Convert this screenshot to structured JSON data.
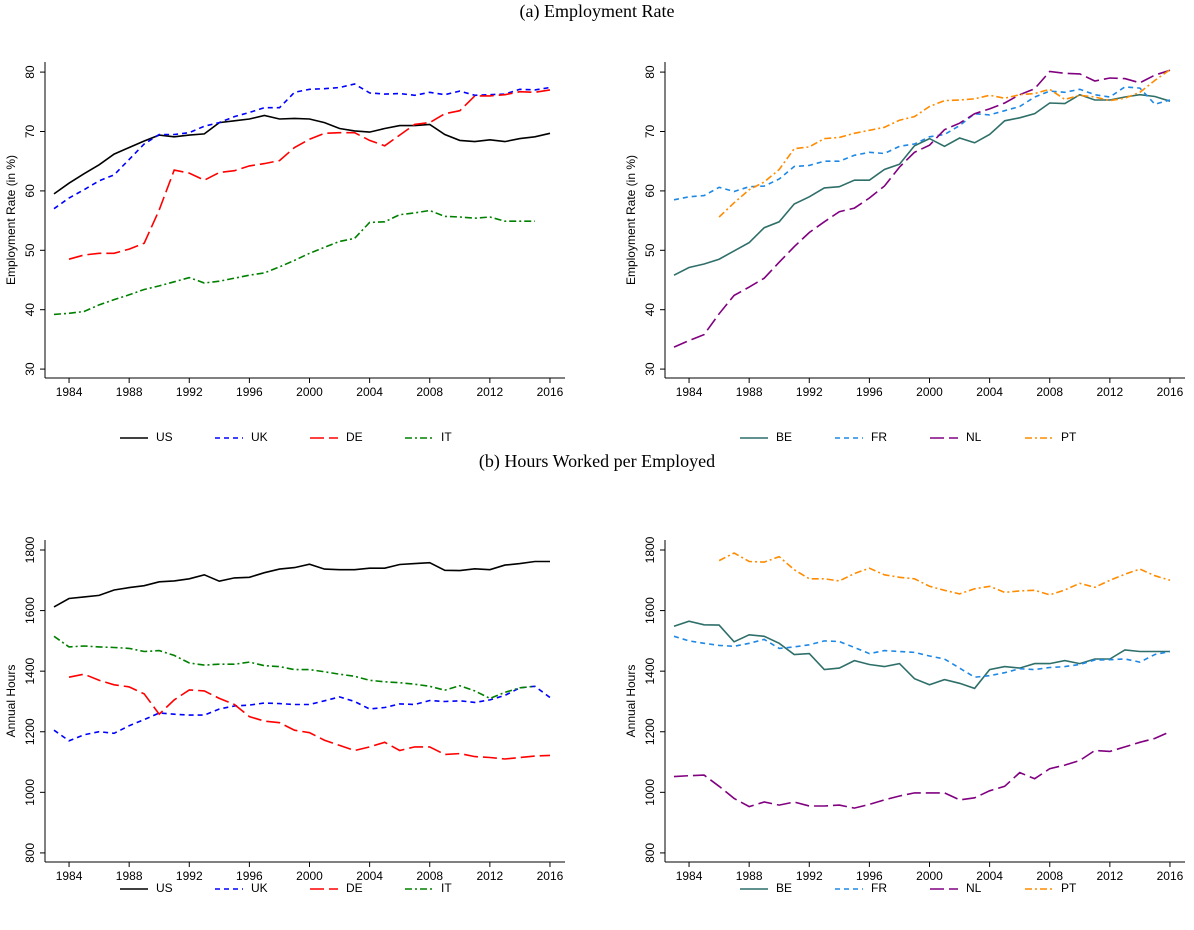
{
  "headings": [
    "(a) Employment Rate",
    "(b) Hours Worked per Employed"
  ],
  "chart_data": [
    {
      "type": "line",
      "ylabel": "Employment Rate (in %)",
      "x": [
        1983,
        1984,
        1985,
        1986,
        1987,
        1988,
        1989,
        1990,
        1991,
        1992,
        1993,
        1994,
        1995,
        1996,
        1997,
        1998,
        1999,
        2000,
        2001,
        2002,
        2003,
        2004,
        2005,
        2006,
        2007,
        2008,
        2009,
        2010,
        2011,
        2012,
        2013,
        2014,
        2015,
        2016
      ],
      "xlim": [
        1982.4,
        2017
      ],
      "xticks": [
        1984,
        1988,
        1992,
        1996,
        2000,
        2004,
        2008,
        2012,
        2016
      ],
      "ylim": [
        28.5,
        81.7
      ],
      "yticks": [
        30,
        40,
        50,
        60,
        70,
        80
      ],
      "grid": false,
      "legend": "bottom",
      "series": [
        {
          "name": "US",
          "color": "#000000",
          "values": [
            59.5,
            61.3,
            62.9,
            64.4,
            66.2,
            67.3,
            68.4,
            69.4,
            69.1,
            69.4,
            69.6,
            71.5,
            71.8,
            72.1,
            72.7,
            72.1,
            72.2,
            72.1,
            71.5,
            70.5,
            70.1,
            69.9,
            70.5,
            71.0,
            71.0,
            71.2,
            69.5,
            68.5,
            68.3,
            68.6,
            68.3,
            68.8,
            69.1,
            69.7
          ]
        },
        {
          "name": "UK",
          "color": "#0000ff",
          "values": [
            57.0,
            58.8,
            60.2,
            61.7,
            62.7,
            65.3,
            67.9,
            69.5,
            69.5,
            69.8,
            70.9,
            71.5,
            72.5,
            73.2,
            74.0,
            74.0,
            76.6,
            77.1,
            77.2,
            77.4,
            78.0,
            76.5,
            76.3,
            76.4,
            76.1,
            76.6,
            76.2,
            76.8,
            76.1,
            76.2,
            76.3,
            77.1,
            77.0,
            77.4
          ]
        },
        {
          "name": "DE",
          "color": "#ff0000",
          "values": [
            null,
            48.5,
            49.2,
            49.5,
            49.5,
            50.2,
            51.2,
            56.8,
            63.5,
            63.0,
            61.8,
            63.1,
            63.4,
            64.2,
            64.6,
            65.1,
            67.3,
            68.7,
            69.7,
            69.8,
            69.8,
            68.5,
            67.6,
            69.4,
            71.2,
            71.5,
            73.0,
            73.5,
            76.0,
            76.0,
            76.2,
            76.7,
            76.6,
            77.0
          ]
        },
        {
          "name": "IT",
          "color": "#008000",
          "values": [
            39.2,
            39.4,
            39.7,
            40.8,
            41.7,
            42.5,
            43.4,
            44.0,
            44.7,
            45.4,
            44.5,
            44.8,
            45.3,
            45.8,
            46.2,
            47.2,
            48.3,
            49.5,
            50.5,
            51.5,
            52.0,
            54.7,
            54.8,
            56.0,
            56.3,
            56.7,
            55.7,
            55.6,
            55.4,
            55.6,
            54.9,
            54.9,
            54.9,
            null
          ]
        }
      ]
    },
    {
      "type": "line",
      "ylabel": "Employment Rate (in %)",
      "x": [
        1983,
        1984,
        1985,
        1986,
        1987,
        1988,
        1989,
        1990,
        1991,
        1992,
        1993,
        1994,
        1995,
        1996,
        1997,
        1998,
        1999,
        2000,
        2001,
        2002,
        2003,
        2004,
        2005,
        2006,
        2007,
        2008,
        2009,
        2010,
        2011,
        2012,
        2013,
        2014,
        2015,
        2016
      ],
      "xlim": [
        1982.4,
        2017
      ],
      "xticks": [
        1984,
        1988,
        1992,
        1996,
        2000,
        2004,
        2008,
        2012,
        2016
      ],
      "ylim": [
        28.5,
        81.7
      ],
      "yticks": [
        30,
        40,
        50,
        60,
        70,
        80
      ],
      "grid": false,
      "legend": "bottom",
      "series": [
        {
          "name": "BE",
          "color": "#2f6f6a",
          "values": [
            45.8,
            47.1,
            47.7,
            48.5,
            49.9,
            51.3,
            53.8,
            54.8,
            57.8,
            59.0,
            60.5,
            60.7,
            61.8,
            61.8,
            63.6,
            64.5,
            67.6,
            68.8,
            67.5,
            68.9,
            68.1,
            69.5,
            71.8,
            72.3,
            73.0,
            74.8,
            74.7,
            76.2,
            75.3,
            75.3,
            75.8,
            76.2,
            75.9,
            75.1
          ]
        },
        {
          "name": "FR",
          "color": "#1e88e5",
          "values": [
            58.5,
            59.0,
            59.2,
            60.6,
            59.9,
            60.7,
            60.8,
            62.0,
            64.1,
            64.3,
            65.0,
            65.0,
            66.0,
            66.5,
            66.3,
            67.5,
            67.9,
            69.1,
            69.5,
            71.0,
            73.0,
            72.8,
            73.5,
            74.2,
            75.8,
            76.8,
            76.6,
            77.1,
            76.2,
            75.8,
            77.5,
            77.3,
            74.6,
            75.3
          ]
        },
        {
          "name": "NL",
          "color": "#800080",
          "values": [
            33.7,
            34.8,
            35.8,
            39.3,
            42.4,
            43.8,
            45.3,
            48.0,
            50.6,
            53.0,
            54.8,
            56.5,
            57.1,
            58.8,
            60.8,
            64.0,
            66.5,
            67.7,
            70.3,
            71.4,
            73.0,
            73.8,
            74.8,
            76.2,
            77.2,
            80.1,
            79.8,
            79.7,
            78.5,
            79.0,
            78.9,
            78.2,
            79.5,
            80.3
          ]
        },
        {
          "name": "PT",
          "color": "#ff8c00",
          "values": [
            null,
            null,
            null,
            55.6,
            58.0,
            60.2,
            61.5,
            63.6,
            67.1,
            67.4,
            68.8,
            69.0,
            69.7,
            70.2,
            70.7,
            71.9,
            72.5,
            74.2,
            75.2,
            75.3,
            75.5,
            76.1,
            75.6,
            76.2,
            76.4,
            77.1,
            75.4,
            76.1,
            75.8,
            75.2,
            75.6,
            76.6,
            78.6,
            80.4
          ]
        }
      ]
    },
    {
      "type": "line",
      "ylabel": "Annual Hours",
      "x": [
        1983,
        1984,
        1985,
        1986,
        1987,
        1988,
        1989,
        1990,
        1991,
        1992,
        1993,
        1994,
        1995,
        1996,
        1997,
        1998,
        1999,
        2000,
        2001,
        2002,
        2003,
        2004,
        2005,
        2006,
        2007,
        2008,
        2009,
        2010,
        2011,
        2012,
        2013,
        2014,
        2015,
        2016
      ],
      "xlim": [
        1982.4,
        2017
      ],
      "xticks": [
        1984,
        1988,
        1992,
        1996,
        2000,
        2004,
        2008,
        2012,
        2016
      ],
      "ylim": [
        770,
        1833
      ],
      "yticks": [
        800,
        1000,
        1200,
        1400,
        1600,
        1800
      ],
      "grid": false,
      "legend": "bottom",
      "series": [
        {
          "name": "US",
          "color": "#000000",
          "values": [
            1612,
            1640,
            1645,
            1650,
            1668,
            1676,
            1682,
            1695,
            1698,
            1705,
            1718,
            1697,
            1708,
            1710,
            1725,
            1737,
            1742,
            1753,
            1737,
            1735,
            1735,
            1740,
            1740,
            1752,
            1755,
            1758,
            1733,
            1732,
            1738,
            1735,
            1750,
            1755,
            1762,
            1762
          ]
        },
        {
          "name": "UK",
          "color": "#0000ff",
          "values": [
            1205,
            1170,
            1190,
            1200,
            1195,
            1220,
            1240,
            1262,
            1258,
            1255,
            1255,
            1275,
            1285,
            1288,
            1295,
            1293,
            1290,
            1290,
            1302,
            1315,
            1300,
            1275,
            1280,
            1292,
            1290,
            1303,
            1300,
            1302,
            1297,
            1305,
            1320,
            1345,
            1350,
            1313
          ]
        },
        {
          "name": "DE",
          "color": "#ff0000",
          "values": [
            null,
            1380,
            1390,
            1370,
            1355,
            1348,
            1325,
            1258,
            1305,
            1338,
            1335,
            1310,
            1290,
            1250,
            1235,
            1230,
            1205,
            1197,
            1172,
            1155,
            1138,
            1150,
            1165,
            1138,
            1150,
            1150,
            1125,
            1128,
            1118,
            1115,
            1110,
            1115,
            1120,
            1122
          ]
        },
        {
          "name": "IT",
          "color": "#008000",
          "values": [
            1515,
            1480,
            1483,
            1480,
            1478,
            1475,
            1465,
            1468,
            1452,
            1427,
            1420,
            1423,
            1423,
            1430,
            1418,
            1415,
            1405,
            1405,
            1398,
            1390,
            1383,
            1370,
            1365,
            1362,
            1357,
            1350,
            1337,
            1352,
            1335,
            1310,
            1330,
            1345,
            1350,
            null
          ]
        }
      ]
    },
    {
      "type": "line",
      "ylabel": "Annual Hours",
      "x": [
        1983,
        1984,
        1985,
        1986,
        1987,
        1988,
        1989,
        1990,
        1991,
        1992,
        1993,
        1994,
        1995,
        1996,
        1997,
        1998,
        1999,
        2000,
        2001,
        2002,
        2003,
        2004,
        2005,
        2006,
        2007,
        2008,
        2009,
        2010,
        2011,
        2012,
        2013,
        2014,
        2015,
        2016
      ],
      "xlim": [
        1982.4,
        2017
      ],
      "xticks": [
        1984,
        1988,
        1992,
        1996,
        2000,
        2004,
        2008,
        2012,
        2016
      ],
      "ylim": [
        770,
        1833
      ],
      "yticks": [
        800,
        1000,
        1200,
        1400,
        1600,
        1800
      ],
      "grid": false,
      "legend": "bottom",
      "series": [
        {
          "name": "BE",
          "color": "#2f6f6a",
          "values": [
            1548,
            1565,
            1553,
            1552,
            1497,
            1520,
            1515,
            1492,
            1455,
            1458,
            1405,
            1410,
            1435,
            1422,
            1415,
            1425,
            1375,
            1355,
            1372,
            1360,
            1343,
            1405,
            1415,
            1410,
            1425,
            1425,
            1435,
            1425,
            1440,
            1440,
            1470,
            1465,
            1465,
            1465
          ]
        },
        {
          "name": "FR",
          "color": "#1e88e5",
          "values": [
            1515,
            1500,
            1492,
            1485,
            1482,
            1492,
            1505,
            1475,
            1480,
            1487,
            1500,
            1498,
            1478,
            1458,
            1468,
            1465,
            1462,
            1450,
            1440,
            1410,
            1380,
            1385,
            1395,
            1408,
            1405,
            1412,
            1415,
            1422,
            1437,
            1438,
            1440,
            1430,
            1455,
            1465
          ]
        },
        {
          "name": "NL",
          "color": "#800080",
          "values": [
            1052,
            1055,
            1057,
            1020,
            980,
            953,
            968,
            958,
            968,
            955,
            955,
            958,
            948,
            960,
            975,
            988,
            998,
            998,
            998,
            975,
            982,
            1005,
            1020,
            1065,
            1045,
            1078,
            1090,
            1105,
            1138,
            1135,
            1150,
            1165,
            1178,
            1200
          ]
        },
        {
          "name": "PT",
          "color": "#ff8c00",
          "values": [
            null,
            null,
            null,
            1765,
            1790,
            1762,
            1760,
            1778,
            1735,
            1705,
            1705,
            1698,
            1722,
            1740,
            1718,
            1710,
            1705,
            1680,
            1667,
            1655,
            1672,
            1680,
            1660,
            1665,
            1667,
            1652,
            1668,
            1690,
            1677,
            1700,
            1720,
            1737,
            1715,
            1700
          ]
        }
      ]
    }
  ]
}
